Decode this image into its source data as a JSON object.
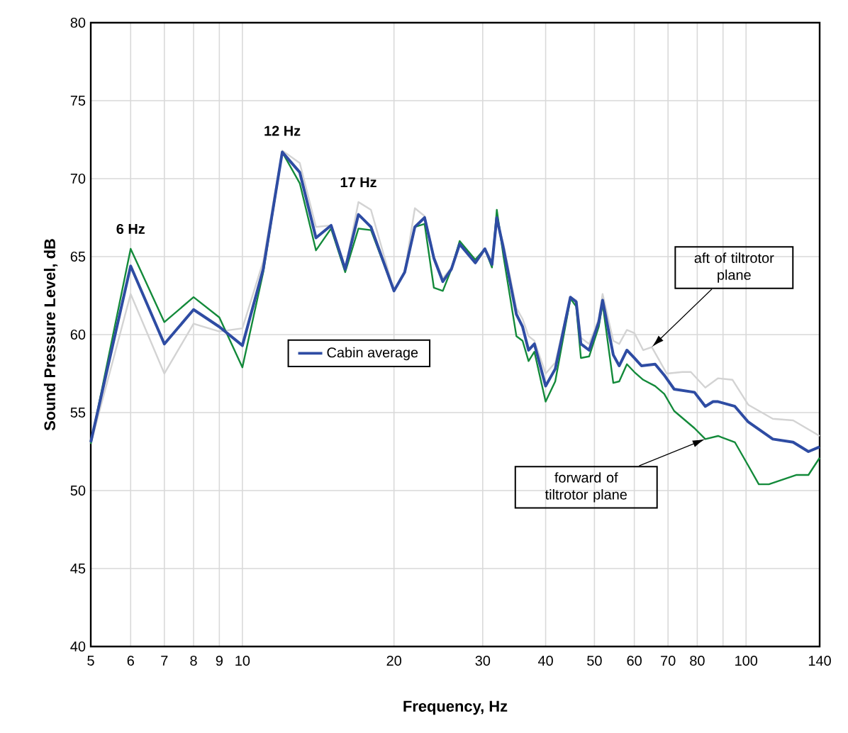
{
  "chart_data": {
    "type": "line",
    "xlabel": "Frequency, Hz",
    "ylabel": "Sound Pressure Level, dB",
    "log": "x",
    "grid": true,
    "legend": "center left",
    "xlim": [
      5,
      140
    ],
    "ylim": [
      40,
      80
    ],
    "xticks": [
      5,
      6,
      7,
      8,
      9,
      10,
      20,
      30,
      40,
      50,
      60,
      70,
      80,
      {
        "value": 90,
        "label": null
      },
      100,
      140
    ],
    "yticks": [
      40,
      45,
      50,
      55,
      60,
      65,
      70,
      75,
      80
    ],
    "series": [
      {
        "color": "#d3d3d3",
        "x": [
          5,
          6,
          7,
          8,
          9,
          10,
          11,
          12,
          13,
          14,
          15,
          16,
          17,
          18,
          20,
          21,
          22,
          23,
          24,
          25,
          26,
          27,
          29,
          30.3,
          31.3,
          32,
          33,
          35,
          36,
          37,
          38,
          40,
          41.8,
          44.8,
          46,
          47,
          48.8,
          51,
          51.9,
          54.5,
          56,
          58,
          60,
          62.5,
          65,
          69.6,
          74.7,
          77.7,
          83,
          88,
          94,
          101,
          113,
          124,
          140
        ],
        "values": [
          53,
          62.6,
          57.5,
          60.7,
          60.2,
          60.4,
          64.7,
          71.8,
          71,
          66.9,
          67,
          64.2,
          68.5,
          68,
          62.8,
          64,
          68.1,
          67.6,
          65,
          63.6,
          64.3,
          65.8,
          64.8,
          65.5,
          64.7,
          67.3,
          65.8,
          61.7,
          61,
          59.9,
          59.6,
          57.5,
          58.2,
          62.4,
          62.2,
          59.8,
          59.4,
          61,
          62.6,
          59.6,
          59.4,
          60.3,
          60.1,
          59,
          59.2,
          57.5,
          57.6,
          57.6,
          56.6,
          57.2,
          57.1,
          55.5,
          54.6,
          54.5,
          53.5
        ]
      },
      {
        "color": "#138a3a",
        "x": [
          5,
          6,
          7,
          8,
          9,
          10,
          11,
          12,
          13,
          14,
          15,
          16,
          17,
          18,
          20,
          21,
          22,
          23,
          24,
          25,
          26,
          27,
          29,
          30.3,
          31.3,
          32,
          33,
          35,
          36,
          37,
          38,
          40,
          41.8,
          44.8,
          46,
          47,
          48.8,
          51,
          51.9,
          54.5,
          56,
          58,
          60,
          62.5,
          66,
          68.8,
          72,
          79,
          83,
          88,
          95,
          101,
          106,
          111,
          126,
          133,
          140
        ],
        "values": [
          53,
          65.5,
          60.8,
          62.4,
          61.1,
          57.9,
          64,
          71.7,
          69.7,
          65.4,
          66.8,
          64,
          66.8,
          66.7,
          62.8,
          64,
          66.9,
          67.1,
          63,
          62.8,
          64.2,
          66,
          64.8,
          65.5,
          64.3,
          68,
          65,
          59.9,
          59.6,
          58.3,
          58.9,
          55.7,
          57,
          62.3,
          61.8,
          58.5,
          58.6,
          60.5,
          62,
          56.9,
          57,
          58.1,
          57.6,
          57.1,
          56.7,
          56.2,
          55.1,
          54,
          53.3,
          53.5,
          53.1,
          51.6,
          50.4,
          50.4,
          51,
          51,
          52.1
        ]
      },
      {
        "name": "Cabin average",
        "color": "#2e4ca3",
        "x": [
          5,
          6,
          7,
          8,
          9,
          10,
          11,
          12,
          13,
          14,
          15,
          16,
          17,
          18,
          20,
          21,
          22,
          23,
          24,
          25,
          26,
          27,
          29,
          30.3,
          31.3,
          32,
          33,
          35,
          36,
          37,
          38,
          40,
          41.8,
          44.8,
          46,
          47,
          48.8,
          51,
          51.9,
          54.5,
          56,
          58,
          60,
          62,
          66,
          68.8,
          72,
          79,
          83,
          86,
          88,
          95,
          101,
          113,
          124,
          133,
          140
        ],
        "values": [
          53.1,
          64.4,
          59.4,
          61.6,
          60.5,
          59.3,
          64.2,
          71.7,
          70.4,
          66.2,
          67,
          64.2,
          67.7,
          66.9,
          62.8,
          64,
          66.9,
          67.5,
          64.9,
          63.4,
          64.2,
          65.8,
          64.6,
          65.5,
          64.5,
          67.5,
          65.5,
          61.3,
          60.5,
          59,
          59.4,
          56.7,
          57.8,
          62.4,
          62.1,
          59.4,
          59,
          60.8,
          62.2,
          58.7,
          58,
          59,
          58.5,
          58,
          58.1,
          57.4,
          56.5,
          56.3,
          55.4,
          55.7,
          55.7,
          55.4,
          54.4,
          53.3,
          53.1,
          52.5,
          52.8
        ]
      }
    ],
    "annotations": [
      {
        "text": "6 Hz",
        "x": 6,
        "y": 65.5
      },
      {
        "text": "12 Hz",
        "x": 12,
        "y": 71.8
      },
      {
        "text": "17 Hz",
        "x": 17,
        "y": 68.5
      },
      {
        "text": "aft of tiltrotor plane",
        "x": 65,
        "y": 59.2
      },
      {
        "text": "forward of tiltrotor plane",
        "x": 83,
        "y": 53.3
      }
    ]
  }
}
